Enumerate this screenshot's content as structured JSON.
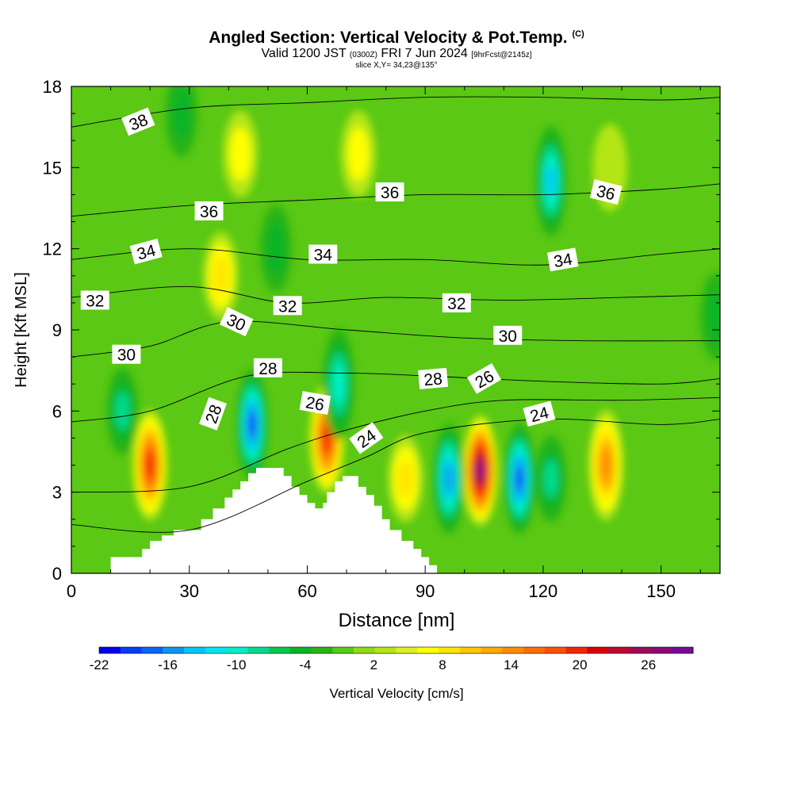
{
  "title": {
    "main": "Angled Section: Vertical Velocity & Pot.Temp.",
    "copyright": "(C)",
    "valid_prefix": "Valid 1200 JST",
    "valid_utc": "(0300Z)",
    "valid_date": "FRI 7 Jun 2024",
    "forecast": "[9hrFcst@2145z]",
    "slice": "slice X,Y= 34,23@135°"
  },
  "chart_data": {
    "type": "heatmap",
    "xlabel": "Distance [nm]",
    "ylabel": "Height [Kft MSL]",
    "xlim": [
      0,
      165
    ],
    "ylim": [
      0,
      18
    ],
    "x_ticks": [
      0,
      30,
      60,
      90,
      120,
      150
    ],
    "y_ticks": [
      0,
      3,
      6,
      9,
      12,
      15,
      18
    ],
    "colorbar": {
      "label": "Vertical Velocity [cm/s]",
      "ticks": [
        "-22",
        "-16",
        "-10",
        "-4",
        "2",
        "8",
        "14",
        "20",
        "26"
      ],
      "colors": [
        "#0000f0",
        "#0a3cf5",
        "#0a64f5",
        "#0a96f0",
        "#00c8f5",
        "#00e6f0",
        "#00f0c8",
        "#00dc8c",
        "#00c850",
        "#0ab428",
        "#28b414",
        "#5ac814",
        "#8cdc14",
        "#b4e614",
        "#dcf01e",
        "#ffff00",
        "#ffe600",
        "#ffc800",
        "#ffaa00",
        "#ff8c00",
        "#ff6e00",
        "#ff5000",
        "#f02800",
        "#dc0000",
        "#be0a32",
        "#a00a5a",
        "#8c0a78",
        "#780a96"
      ]
    },
    "vertical_velocity_features": [
      {
        "kind": "updraft",
        "x": 20,
        "z": 4.0,
        "peak": 20
      },
      {
        "kind": "updraft",
        "x": 38,
        "z": 11.0,
        "peak": 10
      },
      {
        "kind": "updraft",
        "x": 43,
        "z": 15.5,
        "peak": 5
      },
      {
        "kind": "updraft",
        "x": 73,
        "z": 15.5,
        "peak": 5
      },
      {
        "kind": "updraft",
        "x": 65,
        "z": 5.0,
        "peak": 22
      },
      {
        "kind": "updraft",
        "x": 85,
        "z": 3.5,
        "peak": 8
      },
      {
        "kind": "updraft",
        "x": 104,
        "z": 3.8,
        "peak": 29
      },
      {
        "kind": "updraft",
        "x": 136,
        "z": 4.0,
        "peak": 14
      },
      {
        "kind": "updraft",
        "x": 137,
        "z": 15.0,
        "peak": 4
      },
      {
        "kind": "downdraft",
        "x": 13,
        "z": 6.0,
        "peak": -10
      },
      {
        "kind": "downdraft",
        "x": 46,
        "z": 5.5,
        "peak": -22
      },
      {
        "kind": "downdraft",
        "x": 68,
        "z": 7.0,
        "peak": -12
      },
      {
        "kind": "downdraft",
        "x": 96,
        "z": 3.5,
        "peak": -17
      },
      {
        "kind": "downdraft",
        "x": 114,
        "z": 3.5,
        "peak": -20
      },
      {
        "kind": "downdraft",
        "x": 122,
        "z": 3.5,
        "peak": -10
      },
      {
        "kind": "downdraft",
        "x": 122,
        "z": 14.5,
        "peak": -14
      },
      {
        "kind": "downdraft",
        "x": 164,
        "z": 9.5,
        "peak": -6
      },
      {
        "kind": "downdraft",
        "x": 28,
        "z": 17.0,
        "peak": -5
      },
      {
        "kind": "downdraft",
        "x": 52,
        "z": 12.0,
        "peak": -5
      }
    ],
    "terrain_steps": [
      [
        0,
        0
      ],
      [
        10,
        0.6
      ],
      [
        16,
        0.6
      ],
      [
        18,
        0.9
      ],
      [
        20,
        1.2
      ],
      [
        23,
        1.4
      ],
      [
        26,
        1.6
      ],
      [
        30,
        1.6
      ],
      [
        33,
        2.0
      ],
      [
        36,
        2.4
      ],
      [
        39,
        2.8
      ],
      [
        41,
        3.1
      ],
      [
        43,
        3.4
      ],
      [
        45,
        3.7
      ],
      [
        47,
        3.9
      ],
      [
        52,
        3.9
      ],
      [
        54,
        3.6
      ],
      [
        56,
        3.2
      ],
      [
        58,
        2.9
      ],
      [
        60,
        2.6
      ],
      [
        62,
        2.4
      ],
      [
        64,
        2.6
      ],
      [
        65,
        3.0
      ],
      [
        67,
        3.4
      ],
      [
        69,
        3.6
      ],
      [
        71,
        3.6
      ],
      [
        73,
        3.2
      ],
      [
        75,
        2.9
      ],
      [
        77,
        2.5
      ],
      [
        79,
        2.0
      ],
      [
        81,
        1.6
      ],
      [
        84,
        1.2
      ],
      [
        87,
        0.9
      ],
      [
        89,
        0.6
      ],
      [
        91,
        0.3
      ],
      [
        93,
        0
      ],
      [
        165,
        0
      ]
    ],
    "isentropes": [
      {
        "theta": 24,
        "pts": [
          [
            0,
            1.8
          ],
          [
            30,
            1.6
          ],
          [
            60,
            3.4
          ],
          [
            75,
            4.3
          ],
          [
            90,
            5.2
          ],
          [
            120,
            5.7
          ],
          [
            150,
            5.5
          ],
          [
            165,
            5.7
          ]
        ]
      },
      {
        "theta": 26,
        "pts": [
          [
            0,
            3.0
          ],
          [
            30,
            3.2
          ],
          [
            55,
            4.6
          ],
          [
            70,
            5.3
          ],
          [
            90,
            6.0
          ],
          [
            110,
            6.4
          ],
          [
            140,
            6.4
          ],
          [
            165,
            6.5
          ]
        ]
      },
      {
        "theta": 28,
        "pts": [
          [
            0,
            5.6
          ],
          [
            20,
            6.0
          ],
          [
            45,
            7.3
          ],
          [
            70,
            7.4
          ],
          [
            90,
            7.3
          ],
          [
            120,
            7.1
          ],
          [
            150,
            7.0
          ],
          [
            165,
            7.2
          ]
        ]
      },
      {
        "theta": 30,
        "pts": [
          [
            0,
            8.0
          ],
          [
            20,
            8.4
          ],
          [
            40,
            9.3
          ],
          [
            70,
            9.0
          ],
          [
            100,
            8.7
          ],
          [
            130,
            8.6
          ],
          [
            165,
            8.6
          ]
        ]
      },
      {
        "theta": 32,
        "pts": [
          [
            0,
            10.2
          ],
          [
            30,
            10.6
          ],
          [
            55,
            10.0
          ],
          [
            80,
            10.2
          ],
          [
            110,
            10.1
          ],
          [
            140,
            10.2
          ],
          [
            165,
            10.3
          ]
        ]
      },
      {
        "theta": 34,
        "pts": [
          [
            0,
            11.6
          ],
          [
            30,
            12.0
          ],
          [
            60,
            11.6
          ],
          [
            90,
            11.6
          ],
          [
            120,
            11.4
          ],
          [
            150,
            11.8
          ],
          [
            165,
            12.0
          ]
        ]
      },
      {
        "theta": 36,
        "pts": [
          [
            0,
            13.2
          ],
          [
            30,
            13.6
          ],
          [
            60,
            13.8
          ],
          [
            90,
            14.0
          ],
          [
            120,
            14.0
          ],
          [
            150,
            14.2
          ],
          [
            165,
            14.4
          ]
        ]
      },
      {
        "theta": 38,
        "pts": [
          [
            0,
            16.5
          ],
          [
            30,
            17.2
          ],
          [
            60,
            17.4
          ],
          [
            90,
            17.6
          ],
          [
            120,
            17.6
          ],
          [
            150,
            17.5
          ],
          [
            165,
            17.6
          ]
        ]
      }
    ],
    "contour_labels": [
      {
        "text": "38",
        "x": 17,
        "z": 16.7,
        "angle": -22
      },
      {
        "text": "36",
        "x": 35,
        "z": 13.4,
        "angle": 0
      },
      {
        "text": "36",
        "x": 81,
        "z": 14.1,
        "angle": 0
      },
      {
        "text": "36",
        "x": 136,
        "z": 14.1,
        "angle": 14
      },
      {
        "text": "34",
        "x": 19,
        "z": 11.9,
        "angle": -15
      },
      {
        "text": "34",
        "x": 64,
        "z": 11.8,
        "angle": 0
      },
      {
        "text": "34",
        "x": 125,
        "z": 11.6,
        "angle": -10
      },
      {
        "text": "32",
        "x": 6,
        "z": 10.1,
        "angle": 0
      },
      {
        "text": "32",
        "x": 55,
        "z": 9.9,
        "angle": 0
      },
      {
        "text": "32",
        "x": 98,
        "z": 10.0,
        "angle": 0
      },
      {
        "text": "30",
        "x": 14,
        "z": 8.1,
        "angle": 0
      },
      {
        "text": "30",
        "x": 42,
        "z": 9.3,
        "angle": 25
      },
      {
        "text": "30",
        "x": 111,
        "z": 8.8,
        "angle": 0
      },
      {
        "text": "28",
        "x": 50,
        "z": 7.6,
        "angle": 0
      },
      {
        "text": "28",
        "x": 92,
        "z": 7.2,
        "angle": -5
      },
      {
        "text": "28",
        "x": 36,
        "z": 5.9,
        "angle": -70
      },
      {
        "text": "26",
        "x": 62,
        "z": 6.3,
        "angle": 10
      },
      {
        "text": "26",
        "x": 105,
        "z": 7.2,
        "angle": -30
      },
      {
        "text": "24",
        "x": 75,
        "z": 5.0,
        "angle": -35
      },
      {
        "text": "24",
        "x": 119,
        "z": 5.9,
        "angle": -15
      }
    ]
  }
}
